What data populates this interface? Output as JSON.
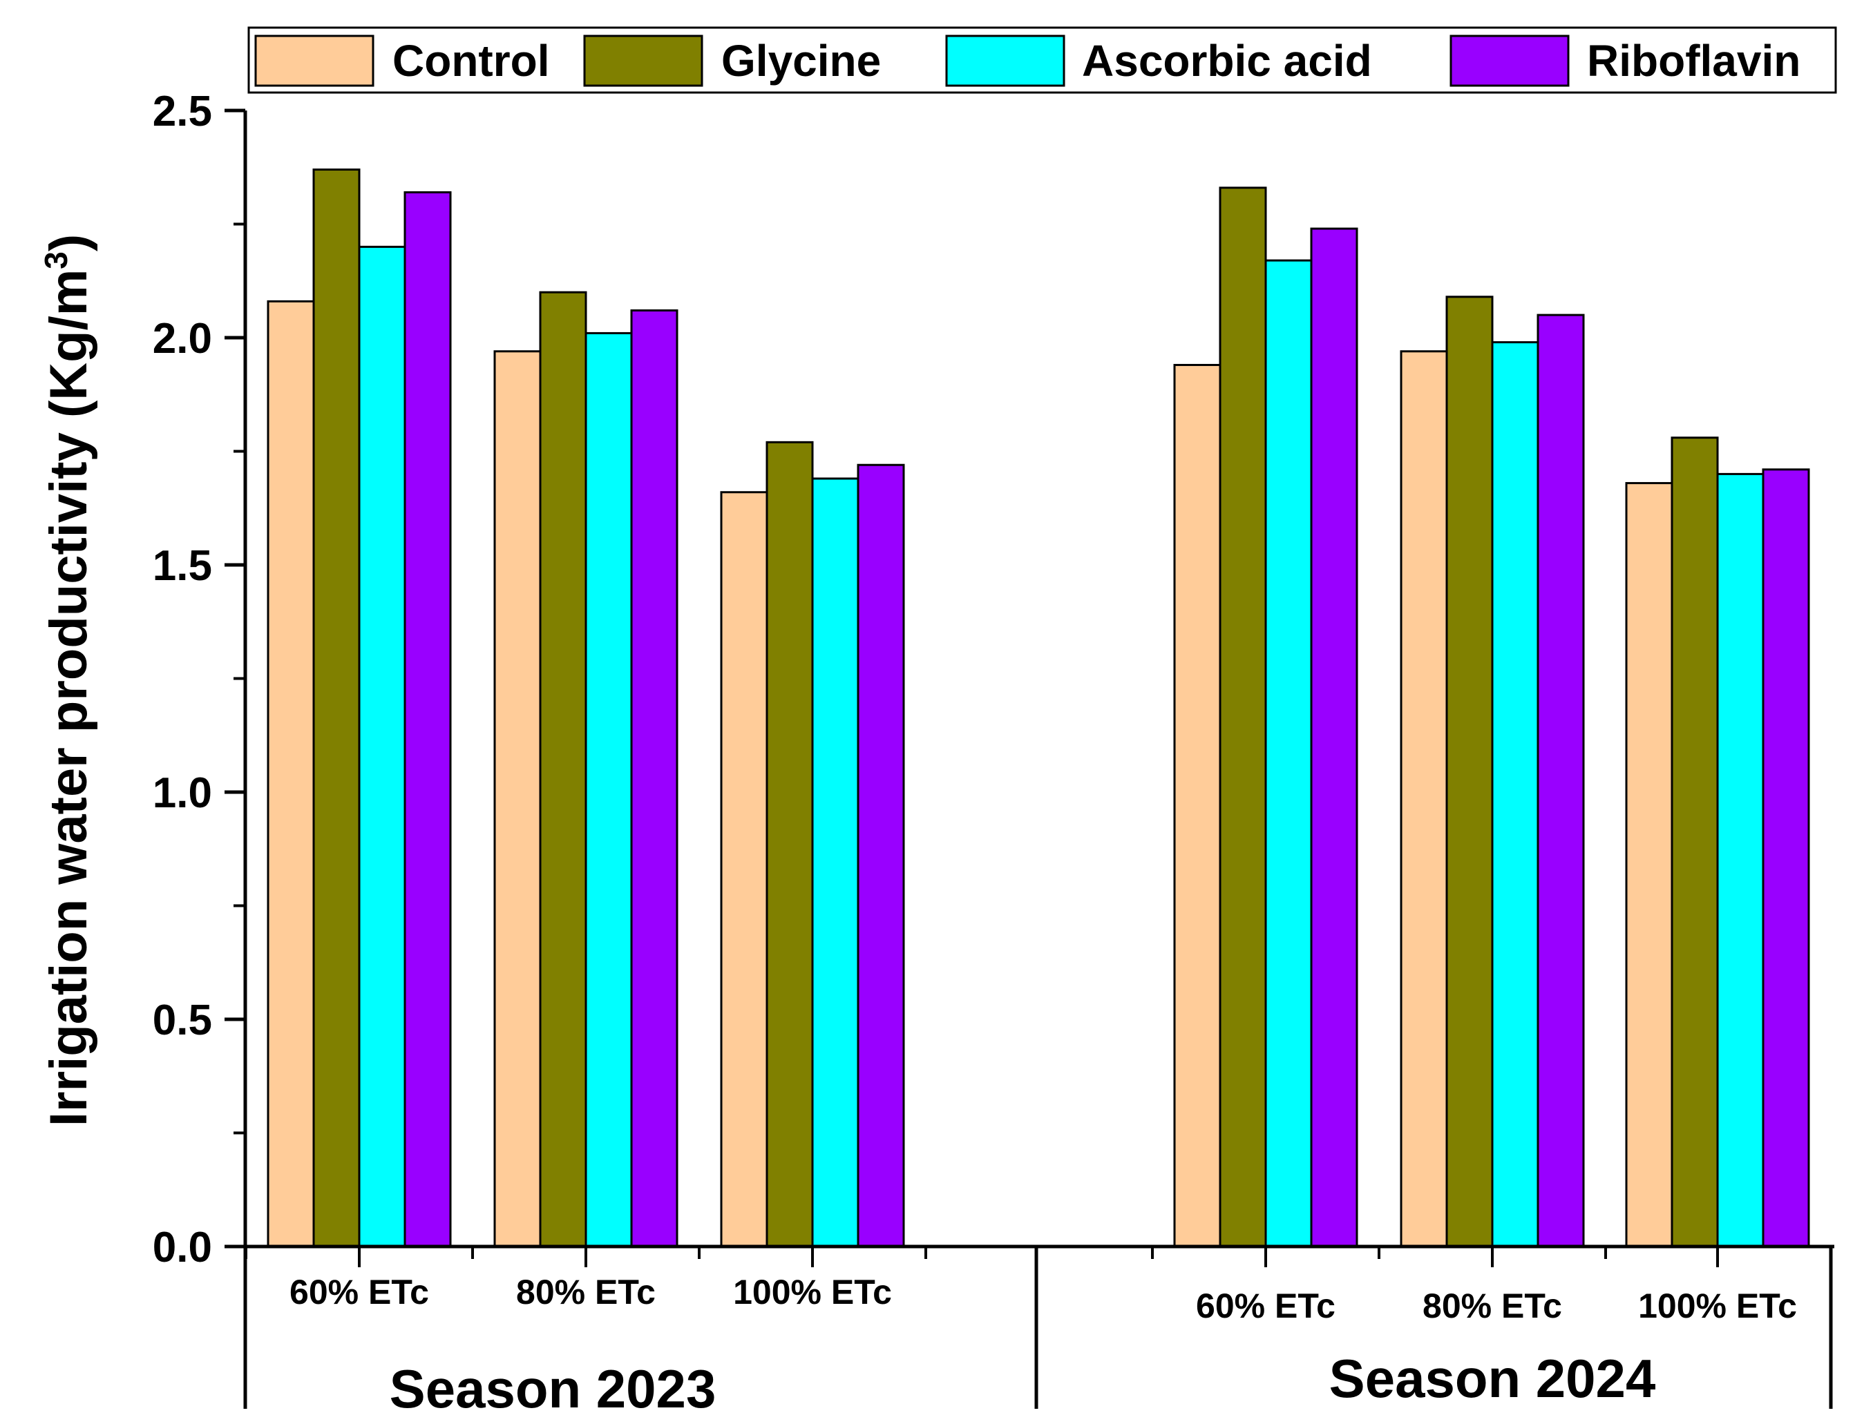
{
  "chart_data": {
    "type": "bar",
    "ylabel": "Irrigation water productivity (Kg/m",
    "ylabel_superscript": "3",
    "ylabel_close": ")",
    "ylim": [
      0,
      2.5
    ],
    "yticks": [
      "0.0",
      "0.5",
      "1.0",
      "1.5",
      "2.0",
      "2.5"
    ],
    "ytick_values": [
      0,
      0.5,
      1.0,
      1.5,
      2.0,
      2.5
    ],
    "legend_position": "top",
    "groups": [
      {
        "name": "Season 2023",
        "categories": [
          "60% ETc",
          "80% ETc",
          "100% ETc"
        ],
        "series": [
          {
            "name": "Control",
            "values": [
              2.08,
              1.97,
              1.66
            ]
          },
          {
            "name": "Glycine",
            "values": [
              2.37,
              2.1,
              1.77
            ]
          },
          {
            "name": "Ascorbic acid",
            "values": [
              2.2,
              2.01,
              1.69
            ]
          },
          {
            "name": "Riboflavin",
            "values": [
              2.32,
              2.06,
              1.72
            ]
          }
        ]
      },
      {
        "name": "Season 2024",
        "categories": [
          "60% ETc",
          "80% ETc",
          "100% ETc"
        ],
        "series": [
          {
            "name": "Control",
            "values": [
              1.94,
              1.97,
              1.68
            ]
          },
          {
            "name": "Glycine",
            "values": [
              2.33,
              2.09,
              1.78
            ]
          },
          {
            "name": "Ascorbic acid",
            "values": [
              2.17,
              1.99,
              1.7
            ]
          },
          {
            "name": "Riboflavin",
            "values": [
              2.24,
              2.05,
              1.71
            ]
          }
        ]
      }
    ],
    "legend": [
      {
        "name": "Control",
        "color": "#FFCC99"
      },
      {
        "name": "Glycine",
        "color": "#808000"
      },
      {
        "name": "Ascorbic acid",
        "color": "#00FFFF"
      },
      {
        "name": "Riboflavin",
        "color": "#9900FF"
      }
    ]
  }
}
